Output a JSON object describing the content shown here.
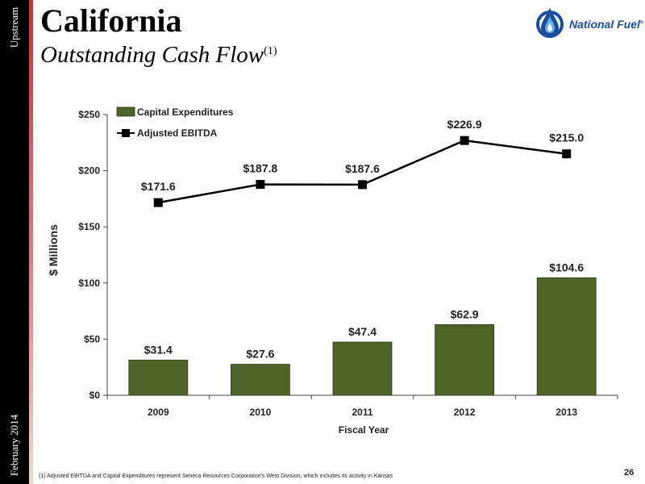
{
  "sidebar": {
    "top_label": "Upstream",
    "bottom_label": "February 2014"
  },
  "header": {
    "title": "California",
    "subtitle": "Outstanding Cash Flow",
    "subtitle_note": "(1)"
  },
  "logo": {
    "text": "National Fuel",
    "mark": "®",
    "icon": "flame-drop-icon"
  },
  "colors": {
    "bar": "#4f6228",
    "line": "#000000",
    "sidebar": "#000000",
    "accent": "#b63a3a",
    "logo_blue": "#1d4e9b"
  },
  "chart_data": {
    "type": "bar+line",
    "categories": [
      "2009",
      "2010",
      "2011",
      "2012",
      "2013"
    ],
    "series": [
      {
        "name": "Capital Expenditures",
        "type": "bar",
        "values": [
          31.4,
          27.6,
          47.4,
          62.9,
          104.6
        ],
        "labels": [
          "$31.4",
          "$27.6",
          "$47.4",
          "$62.9",
          "$104.6"
        ]
      },
      {
        "name": "Adjusted EBITDA",
        "type": "line",
        "values": [
          171.6,
          187.8,
          187.6,
          226.9,
          215.0
        ],
        "labels": [
          "$171.6",
          "$187.8",
          "$187.6",
          "$226.9",
          "$215.0"
        ]
      }
    ],
    "xlabel": "Fiscal Year",
    "ylabel": "$ Millions",
    "ylim": [
      0,
      250
    ],
    "yticks": [
      0,
      50,
      100,
      150,
      200,
      250
    ],
    "ytick_labels": [
      "$0",
      "$50",
      "$100",
      "$150",
      "$200",
      "$250"
    ],
    "grid": false,
    "legend": "top-left"
  },
  "footnote": "(1)    Adjusted EBITDA and Capital Expenditures represent Seneca Resources Corporation’s West Division, which includes its activity in Kansas",
  "page_number": "26"
}
